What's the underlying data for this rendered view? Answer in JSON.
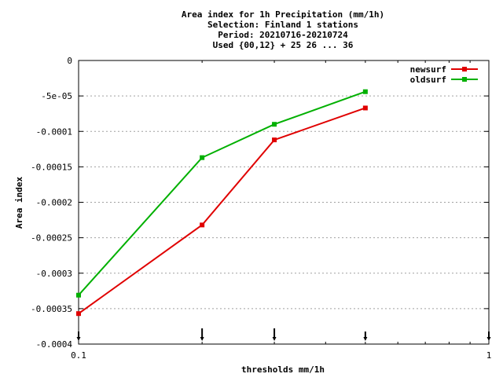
{
  "chart_data": {
    "type": "line",
    "title_lines": [
      "Area index  for 1h Precipitation (mm/1h)",
      "Selection: Finland      1 stations",
      "Period: 20210716-20210724",
      "Used {00,12} + 25 26 ... 36"
    ],
    "xlabel": "thresholds mm/1h",
    "ylabel": "Area index",
    "x_scale": "log",
    "xlim": [
      0.1,
      1
    ],
    "ylim": [
      -0.0004,
      0
    ],
    "x_tick_labels": [
      {
        "value": 0.1,
        "label": "0.1"
      },
      {
        "value": 1,
        "label": "1"
      }
    ],
    "y_ticks": [
      {
        "value": 0,
        "label": "0"
      },
      {
        "value": -5e-05,
        "label": "-5e-05"
      },
      {
        "value": -0.0001,
        "label": "-0.0001"
      },
      {
        "value": -0.00015,
        "label": "-0.00015"
      },
      {
        "value": -0.0002,
        "label": "-0.0002"
      },
      {
        "value": -0.00025,
        "label": "-0.00025"
      },
      {
        "value": -0.0003,
        "label": "-0.0003"
      },
      {
        "value": -0.00035,
        "label": "-0.00035"
      },
      {
        "value": -0.0004,
        "label": "-0.0004"
      }
    ],
    "grid": true,
    "legend_position": "top-right",
    "threshold_markers": [
      0.1,
      0.2,
      0.3,
      0.5,
      1
    ],
    "series": [
      {
        "name": "newsurf",
        "color": "#e00000",
        "x": [
          0.1,
          0.2,
          0.3,
          0.5
        ],
        "y": [
          -0.000357,
          -0.000232,
          -0.000112,
          -6.7e-05
        ]
      },
      {
        "name": "oldsurf",
        "color": "#00b000",
        "x": [
          0.1,
          0.2,
          0.3,
          0.5
        ],
        "y": [
          -0.000331,
          -0.000137,
          -9e-05,
          -4.4e-05
        ]
      }
    ]
  }
}
